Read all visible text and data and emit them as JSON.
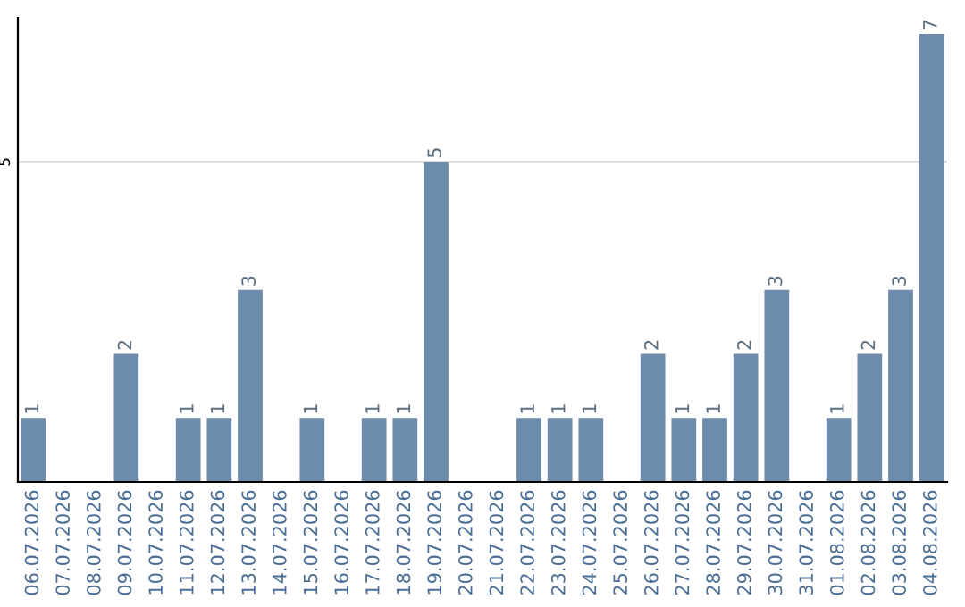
{
  "chart_data": {
    "type": "bar",
    "categories": [
      "06.07.2026",
      "07.07.2026",
      "08.07.2026",
      "09.07.2026",
      "10.07.2026",
      "11.07.2026",
      "12.07.2026",
      "13.07.2026",
      "14.07.2026",
      "15.07.2026",
      "16.07.2026",
      "17.07.2026",
      "18.07.2026",
      "19.07.2026",
      "20.07.2026",
      "21.07.2026",
      "22.07.2026",
      "23.07.2026",
      "24.07.2026",
      "25.07.2026",
      "26.07.2026",
      "27.07.2026",
      "28.07.2026",
      "29.07.2026",
      "30.07.2026",
      "31.07.2026",
      "01.08.2026",
      "02.08.2026",
      "03.08.2026",
      "04.08.2026"
    ],
    "values": [
      1,
      null,
      null,
      2,
      null,
      1,
      1,
      3,
      null,
      1,
      null,
      1,
      1,
      5,
      null,
      null,
      1,
      1,
      1,
      null,
      2,
      1,
      1,
      2,
      3,
      null,
      1,
      2,
      3,
      7
    ],
    "color": "#6d8cab",
    "ylim": [
      0,
      7.25
    ],
    "yticks": [
      5
    ],
    "grid": "y",
    "data_labels": true
  }
}
